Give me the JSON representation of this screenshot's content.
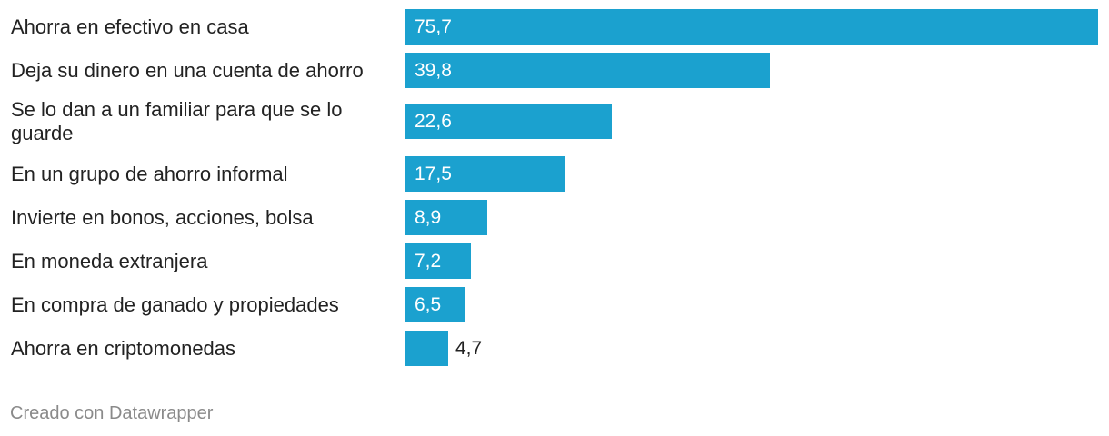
{
  "chart_data": {
    "type": "bar",
    "orientation": "horizontal",
    "categories": [
      "Ahorra en efectivo en casa",
      "Deja su dinero en una cuenta de ahorro",
      "Se lo dan a un familiar para que se lo guarde",
      "En un grupo de ahorro informal",
      "Invierte en bonos, acciones, bolsa",
      "En moneda extranjera",
      "En compra de ganado y propiedades",
      "Ahorra en criptomonedas"
    ],
    "values": [
      75.7,
      39.8,
      22.6,
      17.5,
      8.9,
      7.2,
      6.5,
      4.7
    ],
    "value_labels": [
      "75,7",
      "39,8",
      "22,6",
      "17,5",
      "8,9",
      "7,2",
      "6,5",
      "4,7"
    ],
    "xlim": [
      0,
      75.7
    ],
    "bar_color": "#1ba1cf",
    "grid": false,
    "legend": "none"
  },
  "footer": {
    "credit": "Creado con Datawrapper"
  }
}
